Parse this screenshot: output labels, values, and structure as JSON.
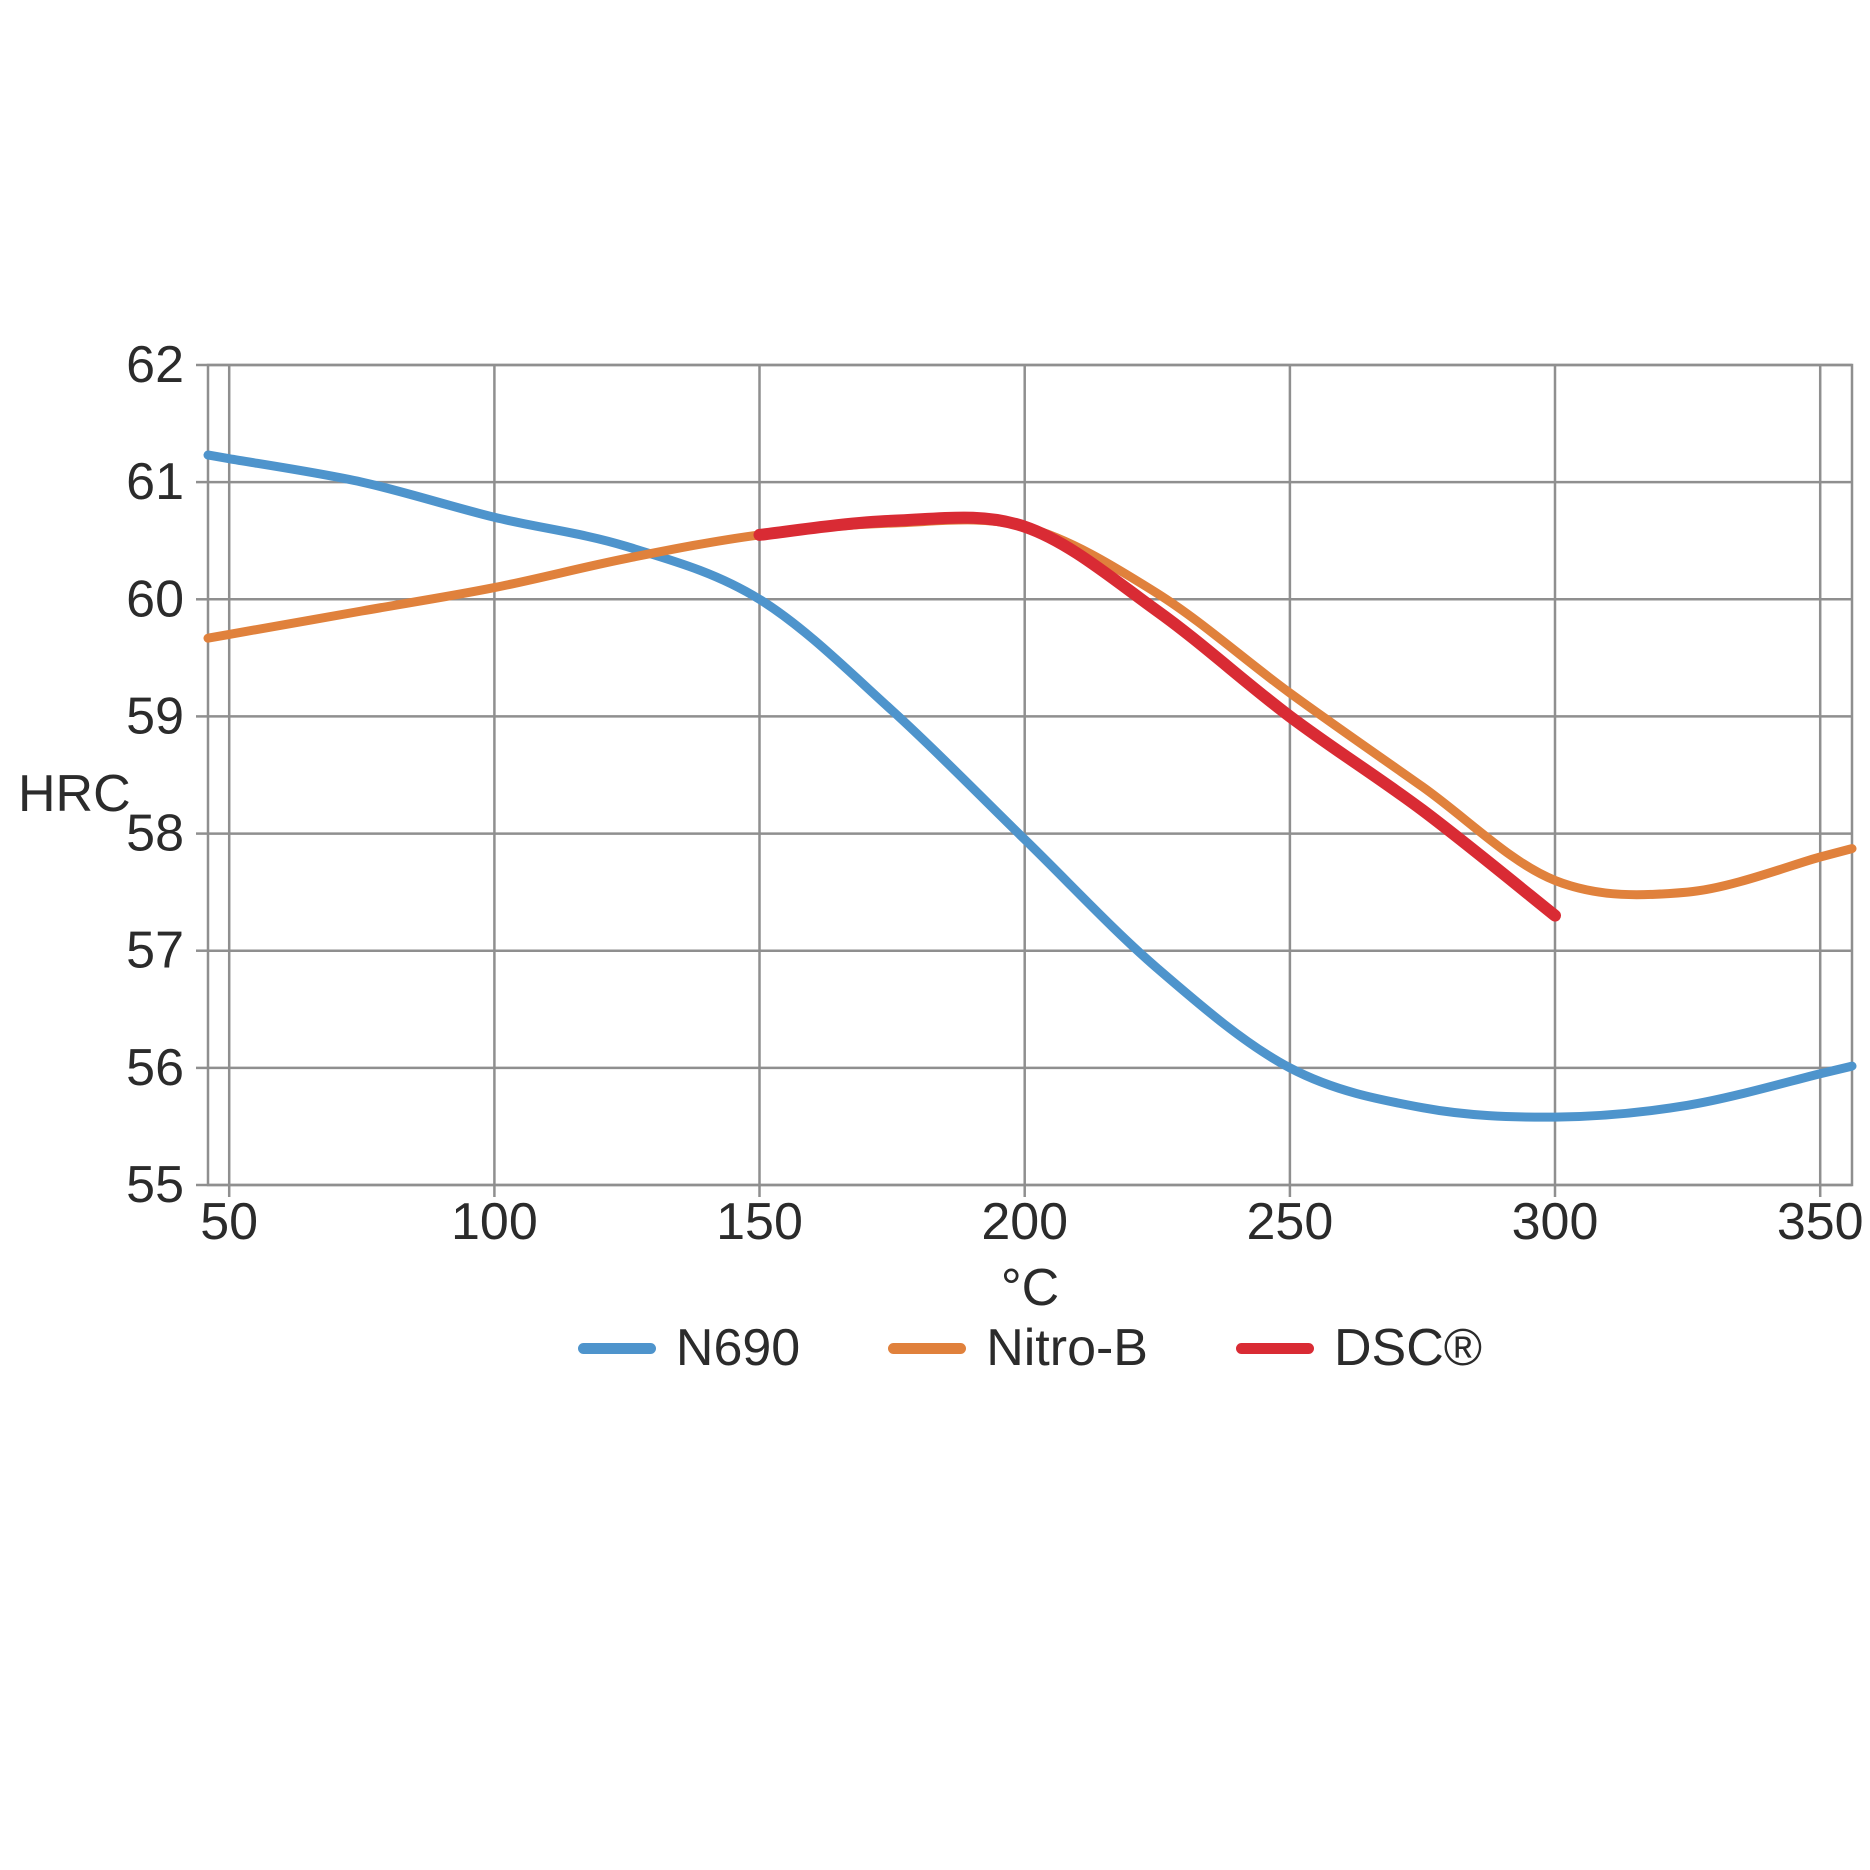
{
  "labels": {
    "y_axis_title": "HRC",
    "x_axis_title": "°C"
  },
  "colors": {
    "grid": "#8f8f8f",
    "text": "#2b2b2b",
    "background": "#ffffff",
    "n690_blue": "#4e94cc",
    "nitrob_orange": "#e0813c",
    "dsc_red": "#d92b34"
  },
  "chart_data": {
    "type": "line",
    "title": "",
    "xlabel": "°C",
    "ylabel": "HRC",
    "x_ticks": [
      50,
      100,
      150,
      200,
      250,
      300,
      350
    ],
    "y_ticks": [
      55,
      56,
      57,
      58,
      59,
      60,
      61,
      62
    ],
    "x_domain": [
      46,
      356
    ],
    "y_domain": [
      55,
      62
    ],
    "xlim": [
      46,
      356
    ],
    "ylim": [
      55,
      62
    ],
    "grid": true,
    "legend_position": "bottom",
    "series": [
      {
        "name": "N690",
        "color": "#4e94cc",
        "line_width": 9,
        "extend_to_edges": true,
        "x": [
          50,
          75,
          100,
          125,
          150,
          175,
          200,
          225,
          250,
          275,
          300,
          325,
          350
        ],
        "y": [
          61.2,
          61.0,
          60.7,
          60.45,
          60.0,
          59.05,
          57.95,
          56.85,
          56.0,
          55.66,
          55.58,
          55.68,
          55.95
        ]
      },
      {
        "name": "Nitro-B",
        "color": "#e0813c",
        "line_width": 9,
        "extend_to_edges": true,
        "x": [
          50,
          75,
          100,
          125,
          150,
          175,
          200,
          225,
          250,
          275,
          300,
          325,
          350
        ],
        "y": [
          59.7,
          59.9,
          60.1,
          60.35,
          60.55,
          60.65,
          60.62,
          60.05,
          59.2,
          58.4,
          57.6,
          57.5,
          57.8
        ]
      },
      {
        "name": "DSC®",
        "color": "#d92b34",
        "line_width": 12,
        "extend_to_edges": false,
        "x": [
          150,
          175,
          200,
          225,
          250,
          275,
          300
        ],
        "y": [
          60.55,
          60.67,
          60.62,
          59.9,
          59.0,
          58.2,
          57.3
        ]
      }
    ]
  }
}
